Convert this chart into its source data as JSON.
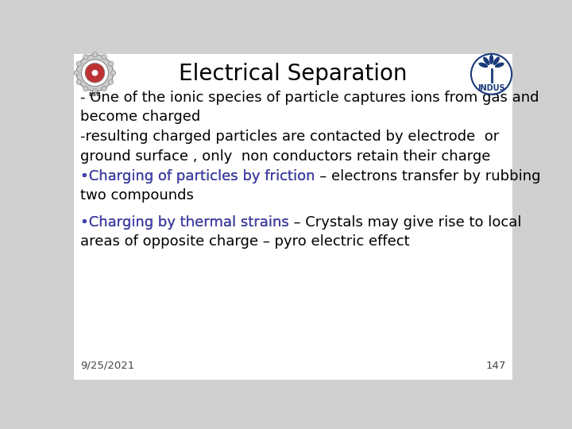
{
  "title": "Electrical Separation",
  "title_fontsize": 20,
  "title_color": "#000000",
  "background_color": "#d0d0d0",
  "content_bg": "#ffffff",
  "footer_date": "9/25/2021",
  "footer_page": "147",
  "footer_fontsize": 9.5,
  "bullet1_black": "- One of the ionic species of particle captures ions from gas and\nbecome charged",
  "bullet2_black": "-resulting charged particles are contacted by electrode  or\nground surface , only  non conductors retain their charge",
  "bullet3_colored": "•Charging of particles by friction",
  "bullet3_black": " – electrons transfer by rubbing\ntwo compounds",
  "bullet4_colored": "•Charging by thermal strains",
  "bullet4_black": " – Crystals may give rise to local\nareas of opposite charge – pyro electric effect",
  "bullet_color": "#4444bb",
  "text_color": "#000000",
  "text_fontsize": 13,
  "font_family": "DejaVu Sans"
}
